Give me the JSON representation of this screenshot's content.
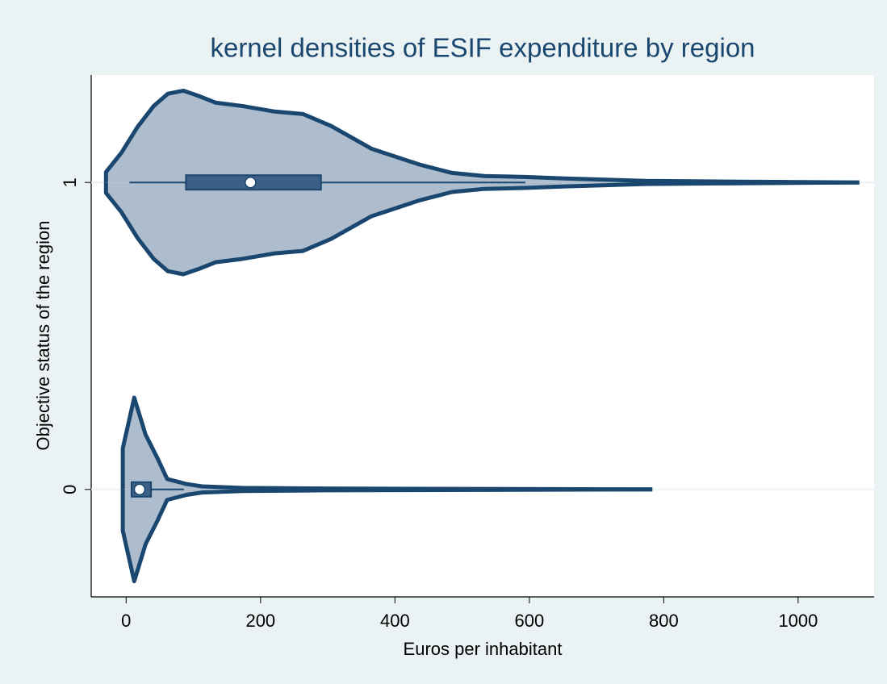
{
  "chart_data": {
    "type": "violin",
    "title": "kernel densities of ESIF expenditure by region",
    "xlabel": "Euros per inhabitant",
    "ylabel": "Objective status of the region",
    "xlim": [
      -52,
      1113
    ],
    "xticks": [
      0,
      200,
      400,
      600,
      800,
      1000
    ],
    "ylim": [
      -0.35,
      1.35
    ],
    "yticks": [
      0,
      1
    ],
    "grid": true,
    "color": "#aebdcd",
    "line_color": "#1a476f",
    "box_color": "#3e5f85",
    "violins": [
      {
        "position": 1,
        "density_x": [
          -30,
          -30,
          -7,
          17,
          41,
          62,
          85,
          109,
          133,
          173,
          221,
          263,
          305,
          365,
          437,
          485,
          533,
          593,
          653,
          773,
          893,
          1091
        ],
        "density": [
          0,
          0.034,
          0.097,
          0.181,
          0.249,
          0.289,
          0.299,
          0.281,
          0.26,
          0.249,
          0.231,
          0.223,
          0.184,
          0.11,
          0.058,
          0.031,
          0.021,
          0.018,
          0.013,
          0.005,
          0.003,
          0
        ],
        "box": {
          "whisker_low": 5,
          "q1": 89,
          "median": 185,
          "q3": 290,
          "whisker_high": 594
        }
      },
      {
        "position": 0,
        "density_x": [
          -5,
          -5,
          12,
          29,
          47,
          61,
          89,
          113,
          173,
          293,
          783
        ],
        "density": [
          0,
          0.134,
          0.299,
          0.178,
          0.1,
          0.034,
          0.018,
          0.01,
          0.005,
          0.003,
          0
        ],
        "box": {
          "whisker_low": 8,
          "q1": 8,
          "median": 20,
          "q3": 37,
          "whisker_high": 86
        }
      }
    ]
  }
}
